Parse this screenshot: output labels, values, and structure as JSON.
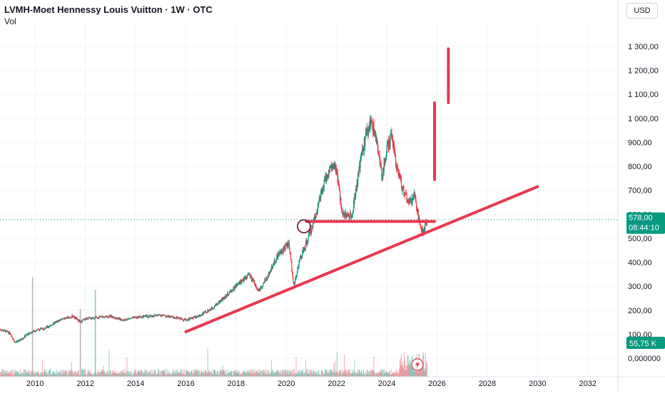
{
  "header": {
    "title": "LVMH-Moet Hennessy Louis Vuitton · 1W · OTC",
    "volume_label": "Vol",
    "currency_button": "USD"
  },
  "price_badge": {
    "value": "578,00",
    "countdown": "08:44:10",
    "color": "#089981"
  },
  "volume_badge": {
    "value": "55,75 K",
    "color": "#089981"
  },
  "colors": {
    "up": "#089981",
    "down": "#f23645",
    "drawing": "#e8384f",
    "circle": "#7b1c3a"
  },
  "chart_data": {
    "type": "line",
    "title": "LVMH-Moet Hennessy Louis Vuitton · 1W · OTC",
    "xlabel": "",
    "ylabel": "",
    "xlim": [
      2008.6,
      2033.2
    ],
    "ylim": [
      -45,
      1400
    ],
    "x_ticks": [
      "2010",
      "2012",
      "2014",
      "2016",
      "2018",
      "2020",
      "2022",
      "2024",
      "2026",
      "2028",
      "2030",
      "2032"
    ],
    "y_ticks": [
      {
        "value": 1300,
        "label": "1 300,00"
      },
      {
        "value": 1200,
        "label": "1 200,00"
      },
      {
        "value": 1100,
        "label": "1 100,00"
      },
      {
        "value": 1000,
        "label": "1 000,00"
      },
      {
        "value": 900,
        "label": "900,00"
      },
      {
        "value": 800,
        "label": "800,00"
      },
      {
        "value": 700,
        "label": "700,00"
      },
      {
        "value": 600,
        "label": "600,00"
      },
      {
        "value": 500,
        "label": "500,00"
      },
      {
        "value": 400,
        "label": "400,00"
      },
      {
        "value": 300,
        "label": "300,00"
      },
      {
        "value": 200,
        "label": "200,00"
      },
      {
        "value": 100,
        "label": "100,00"
      },
      {
        "value": 0,
        "label": "0,000000"
      }
    ],
    "grid": true,
    "current_price": 578,
    "series": [
      {
        "values": [
          [
            2008.6,
            120
          ],
          [
            2009.0,
            105
          ],
          [
            2009.2,
            65
          ],
          [
            2009.4,
            75
          ],
          [
            2009.7,
            100
          ],
          [
            2010.0,
            115
          ],
          [
            2010.5,
            130
          ],
          [
            2011.0,
            160
          ],
          [
            2011.5,
            175
          ],
          [
            2011.8,
            150
          ],
          [
            2012.0,
            165
          ],
          [
            2012.5,
            170
          ],
          [
            2013.0,
            175
          ],
          [
            2013.5,
            160
          ],
          [
            2014.0,
            170
          ],
          [
            2014.5,
            175
          ],
          [
            2015.0,
            180
          ],
          [
            2015.5,
            170
          ],
          [
            2016.0,
            160
          ],
          [
            2016.5,
            175
          ],
          [
            2017.0,
            205
          ],
          [
            2017.5,
            250
          ],
          [
            2018.0,
            300
          ],
          [
            2018.5,
            350
          ],
          [
            2018.9,
            280
          ],
          [
            2019.2,
            330
          ],
          [
            2019.6,
            420
          ],
          [
            2019.9,
            460
          ],
          [
            2020.1,
            480
          ],
          [
            2020.3,
            300
          ],
          [
            2020.5,
            400
          ],
          [
            2020.8,
            480
          ],
          [
            2021.0,
            540
          ],
          [
            2021.3,
            650
          ],
          [
            2021.6,
            760
          ],
          [
            2021.8,
            800
          ],
          [
            2022.0,
            780
          ],
          [
            2022.2,
            620
          ],
          [
            2022.4,
            590
          ],
          [
            2022.6,
            600
          ],
          [
            2022.8,
            720
          ],
          [
            2023.0,
            850
          ],
          [
            2023.2,
            940
          ],
          [
            2023.4,
            990
          ],
          [
            2023.6,
            900
          ],
          [
            2023.8,
            760
          ],
          [
            2024.0,
            870
          ],
          [
            2024.2,
            930
          ],
          [
            2024.4,
            800
          ],
          [
            2024.6,
            720
          ],
          [
            2024.9,
            640
          ],
          [
            2025.1,
            700
          ],
          [
            2025.3,
            560
          ],
          [
            2025.45,
            520
          ],
          [
            2025.6,
            578
          ]
        ]
      }
    ],
    "annotations": [
      {
        "type": "trendline",
        "points": [
          [
            2016.0,
            110
          ],
          [
            2030.0,
            715
          ]
        ]
      },
      {
        "type": "horizontal_segment",
        "y": 570,
        "x": [
          2020.8,
          2025.9
        ]
      },
      {
        "type": "vertical_segment",
        "x": 2025.9,
        "y": [
          745,
          1065
        ]
      },
      {
        "type": "vertical_segment",
        "x": 2026.45,
        "y": [
          1065,
          1290
        ]
      },
      {
        "type": "circle",
        "x": 2020.7,
        "y": 550
      }
    ]
  }
}
